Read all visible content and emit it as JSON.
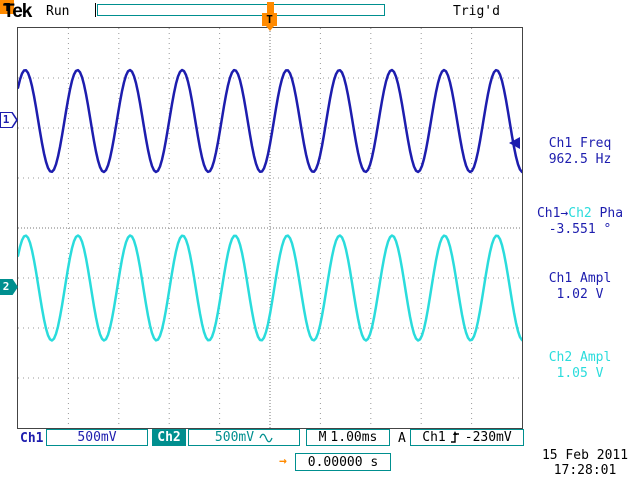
{
  "header": {
    "logo": "Tek",
    "acq_status": "Run",
    "trig_status": "Trig'd",
    "trig_marker": "T"
  },
  "chart_data": {
    "type": "line",
    "x_units": "time",
    "seconds_per_div": 0.001,
    "divisions_x": 10,
    "divisions_y": 8,
    "series": [
      {
        "name": "Ch1",
        "color_key": "ch1",
        "freq_hz": 962.5,
        "ampl_v_pp": 1.02,
        "volts_per_div": 0.5,
        "center_div_from_top": 1.86,
        "phase_lag_deg": 0
      },
      {
        "name": "Ch2",
        "color_key": "ch2",
        "freq_hz": 962.5,
        "ampl_v_pp": 1.05,
        "volts_per_div": 0.5,
        "center_div_from_top": 5.2,
        "phase_lag_deg": 3.551
      }
    ],
    "trigger": {
      "source": "Ch1",
      "level_v": -0.23,
      "slope": "rising",
      "h_delay_s": 0
    }
  },
  "measurements": {
    "m1": {
      "line1": "Ch1 Freq",
      "line2": "962.5 Hz"
    },
    "m2": {
      "src1": "Ch1",
      "arrow": "→",
      "src2": "Ch2",
      "label": " Pha",
      "line2": "-3.551 °"
    },
    "m3": {
      "line1": "Ch1 Ampl",
      "line2": "1.02 V"
    },
    "m4": {
      "line1": "Ch2 Ampl",
      "line2": "1.05 V"
    }
  },
  "channel_markers": {
    "ch1": "1",
    "ch2": "2"
  },
  "statusbar": {
    "ch1_label": "Ch1",
    "ch1_scale": "500mV",
    "ch2_label": "Ch2",
    "ch2_scale": "500mV",
    "ch2_coupling_icon": "sine-icon",
    "timebase_prefix": "M",
    "timebase": "1.00ms",
    "trig_prefix": "A",
    "trig_source": "Ch1",
    "trig_slope_icon": "rising-edge-icon",
    "trig_level": "-230mV"
  },
  "footer": {
    "t_marker": "T",
    "t_arrow": "→",
    "h_delay": "0.00000 s",
    "date": "15 Feb 2011",
    "time": "17:28:01"
  },
  "colors": {
    "ch1": "#1d1dae",
    "ch2": "#2adcdc",
    "teal": "#008f8f",
    "orange": "#ff8a00",
    "grid": "#9a9a9a",
    "text": "#000000"
  }
}
